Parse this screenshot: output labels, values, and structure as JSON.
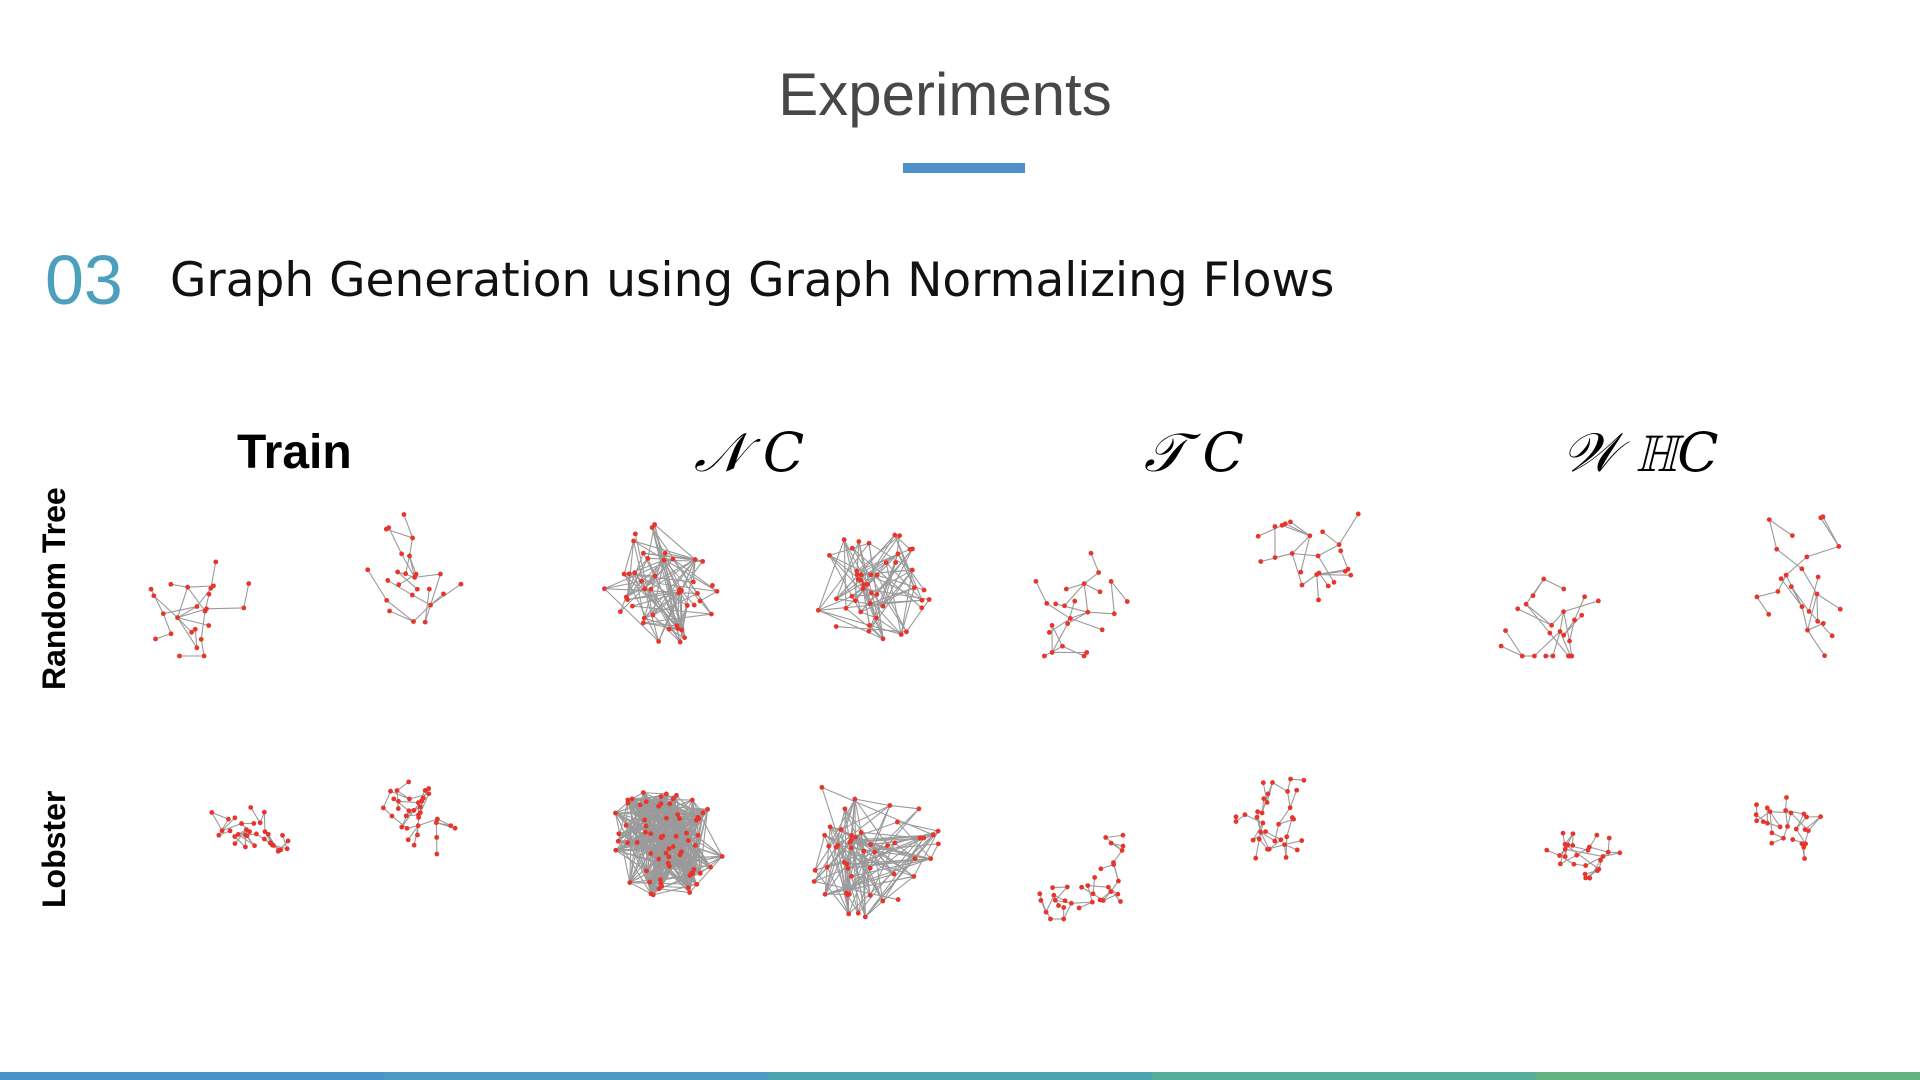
{
  "slide": {
    "title": "Experiments",
    "section_number": "03",
    "section_heading": "Graph Generation using Graph Normalizing Flows"
  },
  "columns": [
    {
      "id": "train",
      "label": "Train"
    },
    {
      "id": "nc",
      "label": "𝒩 C"
    },
    {
      "id": "tc",
      "label": "𝒯 C"
    },
    {
      "id": "whc",
      "label": "𝒲 ℍC"
    }
  ],
  "rows": [
    {
      "id": "random-tree",
      "label": "Random Tree"
    },
    {
      "id": "lobster",
      "label": "Lobster"
    }
  ],
  "colors": {
    "accent_blue": "#4f90c9",
    "section_number": "#4da0bd",
    "node": "#e8342b",
    "edge": "#9a9a9a",
    "footer": [
      "#4a92c8",
      "#4b9ac4",
      "#4ca4b0",
      "#55ad99",
      "#62b37f"
    ]
  }
}
